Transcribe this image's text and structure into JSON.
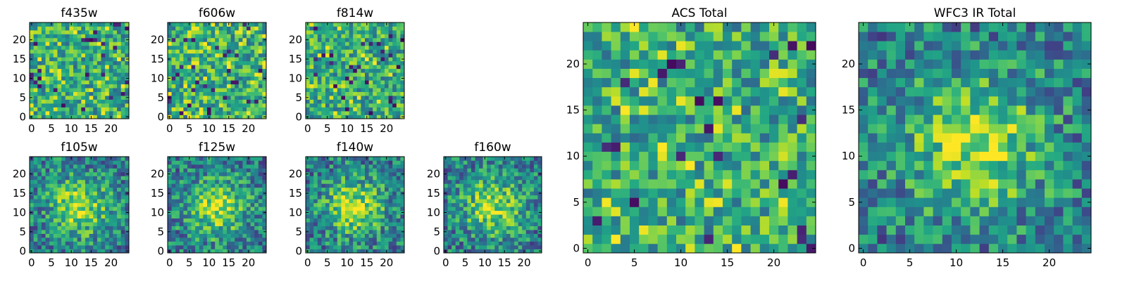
{
  "chart_data": [
    {
      "type": "heatmap",
      "title": "f435w",
      "pattern": "noise",
      "x_range": [
        0,
        24
      ],
      "y_range": [
        0,
        24
      ],
      "x_ticks": [
        0,
        5,
        10,
        15,
        20
      ],
      "y_ticks": [
        0,
        5,
        10,
        15,
        20
      ],
      "size": 25,
      "colormap": "viridis",
      "grid": false,
      "seed": 11
    },
    {
      "type": "heatmap",
      "title": "f606w",
      "pattern": "noise",
      "x_range": [
        0,
        24
      ],
      "y_range": [
        0,
        24
      ],
      "x_ticks": [
        0,
        5,
        10,
        15,
        20
      ],
      "y_ticks": [
        0,
        5,
        10,
        15,
        20
      ],
      "size": 25,
      "colormap": "viridis",
      "grid": false,
      "seed": 23
    },
    {
      "type": "heatmap",
      "title": "f814w",
      "pattern": "noise",
      "x_range": [
        0,
        24
      ],
      "y_range": [
        0,
        24
      ],
      "x_ticks": [
        0,
        5,
        10,
        15,
        20
      ],
      "y_ticks": [
        0,
        5,
        10,
        15,
        20
      ],
      "size": 25,
      "colormap": "viridis",
      "grid": false,
      "seed": 37
    },
    {
      "type": "heatmap",
      "title": "f105w",
      "pattern": "blob",
      "x_range": [
        0,
        24
      ],
      "y_range": [
        0,
        24
      ],
      "x_ticks": [
        0,
        5,
        10,
        15,
        20
      ],
      "y_ticks": [
        0,
        5,
        10,
        15,
        20
      ],
      "size": 25,
      "colormap": "viridis",
      "grid": false,
      "seed": 41
    },
    {
      "type": "heatmap",
      "title": "f125w",
      "pattern": "blob",
      "x_range": [
        0,
        24
      ],
      "y_range": [
        0,
        24
      ],
      "x_ticks": [
        0,
        5,
        10,
        15,
        20
      ],
      "y_ticks": [
        0,
        5,
        10,
        15,
        20
      ],
      "size": 25,
      "colormap": "viridis",
      "grid": false,
      "seed": 53
    },
    {
      "type": "heatmap",
      "title": "f140w",
      "pattern": "blob",
      "x_range": [
        0,
        24
      ],
      "y_range": [
        0,
        24
      ],
      "x_ticks": [
        0,
        5,
        10,
        15,
        20
      ],
      "y_ticks": [
        0,
        5,
        10,
        15,
        20
      ],
      "size": 25,
      "colormap": "viridis",
      "grid": false,
      "seed": 67
    },
    {
      "type": "heatmap",
      "title": "f160w",
      "pattern": "blob",
      "x_range": [
        0,
        24
      ],
      "y_range": [
        0,
        24
      ],
      "x_ticks": [
        0,
        5,
        10,
        15,
        20
      ],
      "y_ticks": [
        0,
        5,
        10,
        15,
        20
      ],
      "size": 25,
      "colormap": "viridis",
      "grid": false,
      "seed": 79
    },
    {
      "type": "heatmap",
      "title": "ACS Total",
      "pattern": "noise",
      "x_range": [
        0,
        24
      ],
      "y_range": [
        0,
        24
      ],
      "x_ticks": [
        0,
        5,
        10,
        15,
        20
      ],
      "y_ticks": [
        0,
        5,
        10,
        15,
        20
      ],
      "size": 25,
      "colormap": "viridis",
      "grid": false,
      "seed": 83
    },
    {
      "type": "heatmap",
      "title": "WFC3 IR Total",
      "pattern": "blob",
      "x_range": [
        0,
        24
      ],
      "y_range": [
        0,
        24
      ],
      "x_ticks": [
        0,
        5,
        10,
        15,
        20
      ],
      "y_ticks": [
        0,
        5,
        10,
        15,
        20
      ],
      "size": 25,
      "colormap": "viridis",
      "grid": false,
      "seed": 97
    }
  ]
}
